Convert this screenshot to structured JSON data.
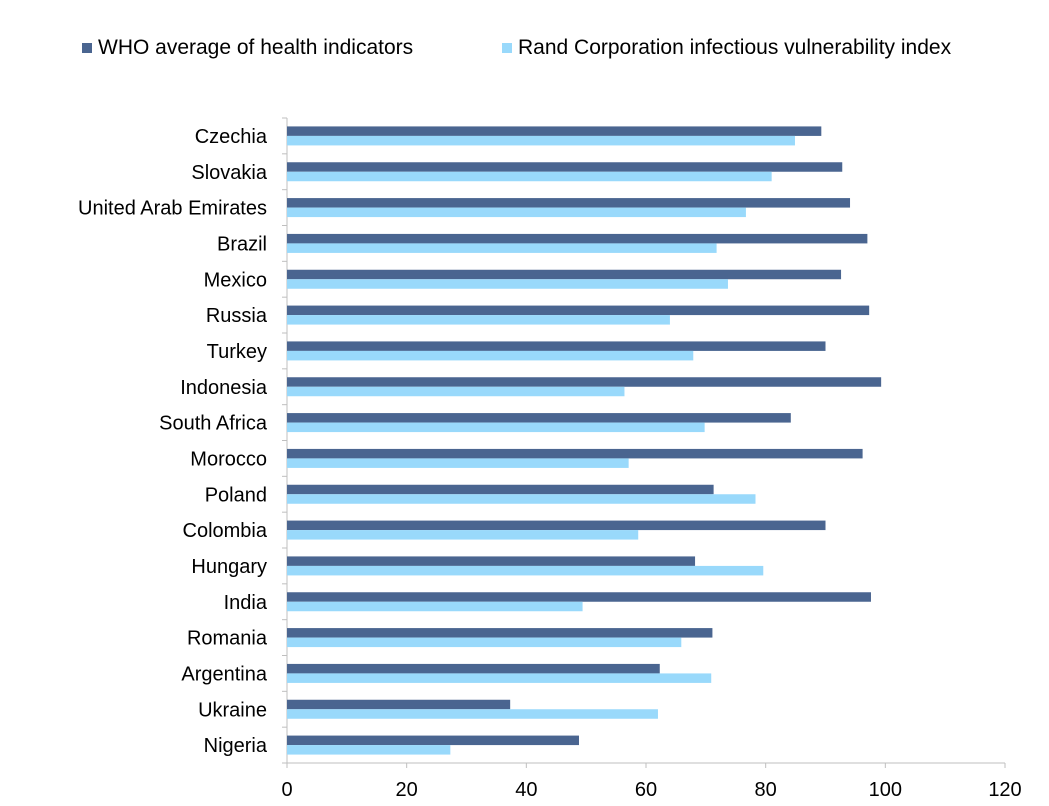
{
  "chart_data": {
    "type": "bar",
    "orientation": "horizontal",
    "categories": [
      "Czechia",
      "Slovakia",
      "United Arab Emirates",
      "Brazil",
      "Mexico",
      "Russia",
      "Turkey",
      "Indonesia",
      "South Africa",
      "Morocco",
      "Poland",
      "Colombia",
      "Hungary",
      "India",
      "Romania",
      "Argentina",
      "Ukraine",
      "Nigeria"
    ],
    "series": [
      {
        "name": "WHO average of health indicators",
        "color": "#4a6590",
        "values": [
          89.3,
          92.8,
          94.1,
          97.0,
          92.6,
          97.3,
          90.0,
          99.3,
          84.2,
          96.2,
          71.3,
          90.0,
          68.2,
          97.6,
          71.1,
          62.3,
          37.3,
          48.8
        ]
      },
      {
        "name": "Rand Corporation infectious vulnerability index",
        "color": "#99d9fb",
        "values": [
          84.9,
          81.0,
          76.7,
          71.8,
          73.7,
          64.0,
          67.9,
          56.4,
          69.8,
          57.1,
          78.3,
          58.7,
          79.6,
          49.4,
          65.9,
          70.9,
          62.0,
          27.3
        ]
      }
    ],
    "title": "",
    "xlabel": "",
    "ylabel": "",
    "xlim": [
      0,
      120
    ],
    "xticks": [
      "0",
      "20",
      "40",
      "60",
      "80",
      "100",
      "120"
    ],
    "grid": false,
    "legend_position": "top"
  }
}
